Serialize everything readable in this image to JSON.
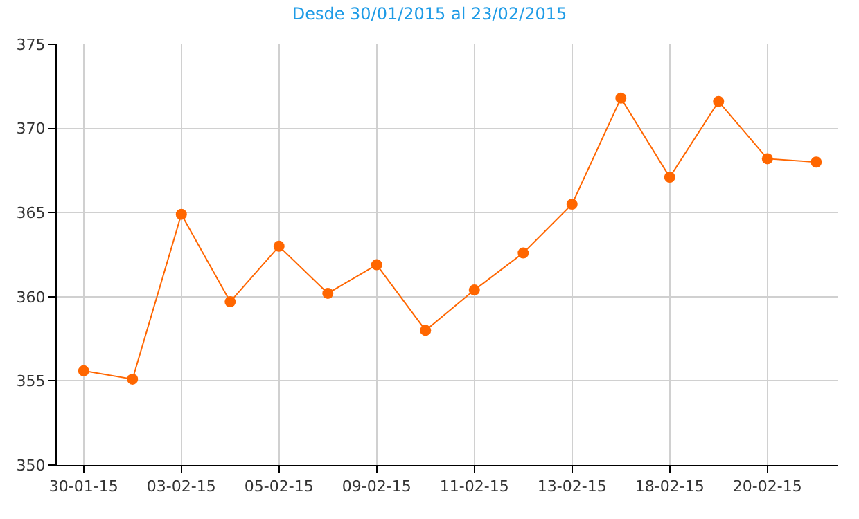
{
  "chart_data": {
    "type": "line",
    "title": "Desde 30/01/2015 al 23/02/2015",
    "categories": [
      "30-01-15",
      null,
      "03-02-15",
      null,
      "05-02-15",
      null,
      "09-02-15",
      null,
      "11-02-15",
      null,
      "13-02-15",
      null,
      "18-02-15",
      null,
      "20-02-15",
      null
    ],
    "series": [
      {
        "color": "#ff6600",
        "values": [
          355.6,
          355.1,
          364.9,
          359.7,
          363.0,
          360.2,
          361.9,
          358.0,
          360.4,
          362.6,
          365.5,
          371.8,
          367.1,
          371.6,
          368.2,
          368.0
        ]
      }
    ],
    "ylim": [
      350,
      375
    ],
    "yticks": [
      350,
      355,
      360,
      365,
      370,
      375
    ],
    "grid": true,
    "marker": "circle",
    "line_style": "solid"
  }
}
